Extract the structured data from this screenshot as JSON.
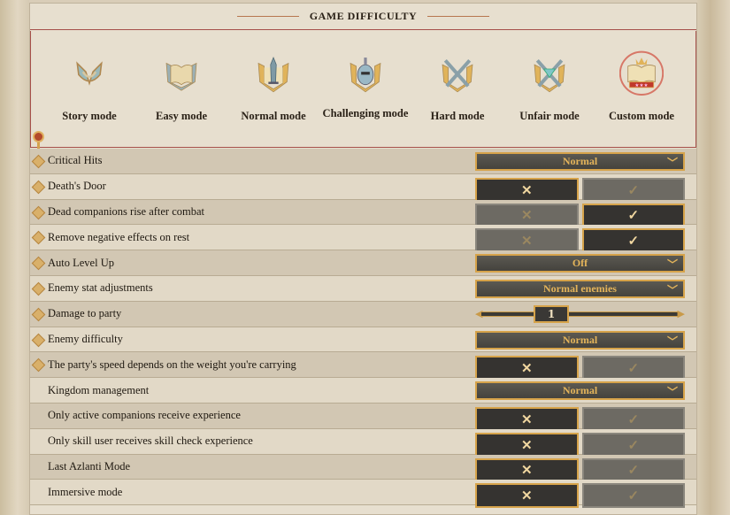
{
  "title": "GAME DIFFICULTY",
  "accent": "#d6a34a",
  "selected_mode": "Custom mode",
  "modes": [
    {
      "label": "Story mode",
      "icon": "wings-horseshoe-icon"
    },
    {
      "label": "Easy mode",
      "icon": "book-wings-icon"
    },
    {
      "label": "Normal mode",
      "icon": "sword-book-icon"
    },
    {
      "label": "Challenging mode",
      "icon": "helmet-book-icon"
    },
    {
      "label": "Hard mode",
      "icon": "crossed-swords-icon"
    },
    {
      "label": "Unfair mode",
      "icon": "gem-crossed-swords-icon"
    },
    {
      "label": "Custom mode",
      "icon": "crown-book-icon"
    }
  ],
  "settings": [
    {
      "name": "Critical Hits",
      "type": "dropdown",
      "value": "Normal"
    },
    {
      "name": "Death's Door",
      "type": "toggle",
      "value": false
    },
    {
      "name": "Dead companions rise after combat",
      "type": "toggle",
      "value": true
    },
    {
      "name": "Remove negative effects on rest",
      "type": "toggle",
      "value": true
    },
    {
      "name": "Auto Level Up",
      "type": "dropdown",
      "value": "Off"
    },
    {
      "name": "Enemy stat adjustments",
      "type": "dropdown",
      "value": "Normal enemies"
    },
    {
      "name": "Damage to party",
      "type": "slider",
      "value": "1"
    },
    {
      "name": "Enemy difficulty",
      "type": "dropdown",
      "value": "Normal"
    },
    {
      "name": "The party's speed depends on the weight you're carrying",
      "type": "toggle",
      "value": false
    },
    {
      "name": "Kingdom management",
      "type": "dropdown",
      "value": "Normal"
    },
    {
      "name": "Only active companions receive experience",
      "type": "toggle",
      "value": false
    },
    {
      "name": "Only skill user receives skill check experience",
      "type": "toggle",
      "value": false
    },
    {
      "name": "Last Azlanti Mode",
      "type": "toggle",
      "value": false
    },
    {
      "name": "Immersive mode",
      "type": "toggle",
      "value": false
    }
  ],
  "glyphs": {
    "off": "✕",
    "on": "✓",
    "chevron": "⌄"
  }
}
